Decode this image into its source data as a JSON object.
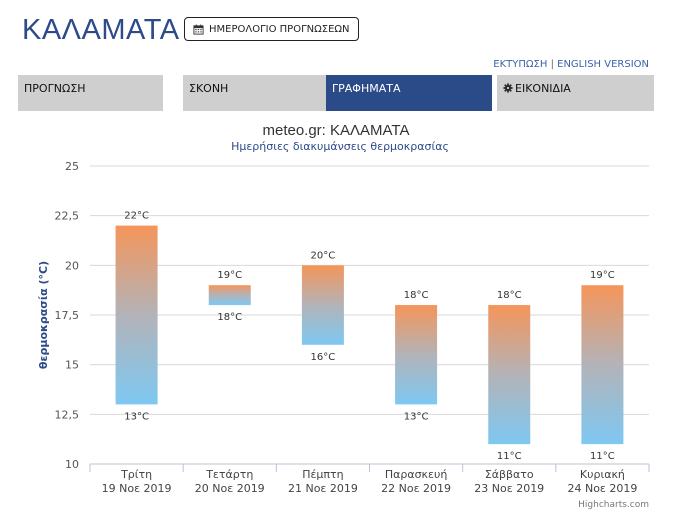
{
  "header": {
    "city": "ΚΑΛΑΜΑΤΑ",
    "calendar_label": "ΗΜΕΡΟΛΟΓΙΟ ΠΡΟΓΝΩΣΕΩΝ",
    "print_link": "ΕΚΤΥΠΩΣΗ",
    "separator": "|",
    "english_link": "ENGLISH VERSION"
  },
  "tabs": [
    {
      "label": "ΠΡΟΓΝΩΣΗ",
      "active": false
    },
    {
      "label": "ΣΚΟΝΗ",
      "active": false
    },
    {
      "label": "ΓΡΑΦΗΜΑΤΑ",
      "active": true
    },
    {
      "label": "ΕΙΚΟΝΙΔΙΑ",
      "active": false,
      "icon": "gear-icon"
    }
  ],
  "colors": {
    "accent": "#2b4a88",
    "bar_top": "#f5955a",
    "bar_bottom": "#7ec8f2",
    "title": "#2d4a8a"
  },
  "chart_data": {
    "type": "bar",
    "subtype": "columnrange",
    "title": "meteo.gr: ΚΑΛΑΜΑΤΑ",
    "subtitle": "Ημερήσιες διακυμάνσεις θερμοκρασίας",
    "ylabel": "θερμοκρασία (°C)",
    "ylim": [
      10,
      25
    ],
    "yticks": [
      "10",
      "12,5",
      "15",
      "17,5",
      "20",
      "22,5",
      "25"
    ],
    "ytick_values": [
      10,
      12.5,
      15,
      17.5,
      20,
      22.5,
      25
    ],
    "grid": true,
    "categories": [
      {
        "day": "Τρίτη",
        "date": "19 Νοε 2019"
      },
      {
        "day": "Τετάρτη",
        "date": "20 Νοε 2019"
      },
      {
        "day": "Πέμπτη",
        "date": "21 Νοε 2019"
      },
      {
        "day": "Παρασκευή",
        "date": "22 Νοε 2019"
      },
      {
        "day": "Σάββατο",
        "date": "23 Νοε 2019"
      },
      {
        "day": "Κυριακή",
        "date": "24 Νοε 2019"
      }
    ],
    "series": [
      {
        "low": [
          13,
          18,
          16,
          13,
          11,
          11
        ],
        "high": [
          22,
          19,
          20,
          18,
          18,
          19
        ],
        "low_labels": [
          "13°C",
          "18°C",
          "16°C",
          "13°C",
          "11°C",
          "11°C"
        ],
        "high_labels": [
          "22°C",
          "19°C",
          "20°C",
          "18°C",
          "18°C",
          "19°C"
        ]
      }
    ]
  },
  "credit": "Highcharts.com"
}
